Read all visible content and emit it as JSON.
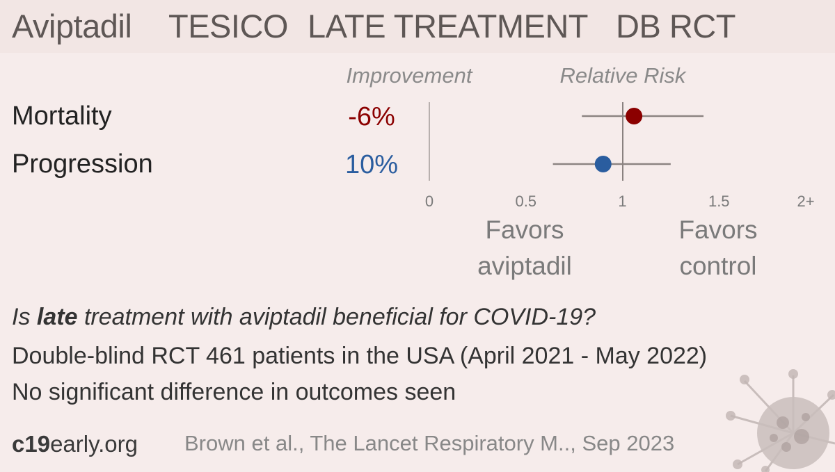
{
  "header": {
    "drug": "Aviptadil",
    "trial": "TESICO",
    "stage": "LATE TREATMENT",
    "design": "DB RCT"
  },
  "chart_data": {
    "type": "forest",
    "column_headers": {
      "improvement": "Improvement",
      "relative_risk": "Relative Risk"
    },
    "outcomes": [
      {
        "name": "Mortality",
        "improvement": "-6%",
        "rr": 1.06,
        "ci_low": 0.79,
        "ci_high": 1.42,
        "color": "#8b0000"
      },
      {
        "name": "Progression",
        "improvement": "10%",
        "rr": 0.9,
        "ci_low": 0.64,
        "ci_high": 1.25,
        "color": "#2a5d9f"
      }
    ],
    "x_ticks": [
      "0",
      "0.5",
      "1",
      "1.5",
      "2+"
    ],
    "xlim": [
      0,
      2
    ],
    "reference_line": 1,
    "favors_left": [
      "Favors",
      "aviptadil"
    ],
    "favors_right": [
      "Favors",
      "control"
    ]
  },
  "summary": {
    "question_prefix": "Is ",
    "question_bold": "late",
    "question_suffix": " treatment with aviptadil beneficial for COVID-19?",
    "design_line": "Double-blind RCT 461 patients in the USA (April 2021 - May 2022)",
    "result_line": "No significant difference in outcomes seen"
  },
  "footer": {
    "brand_bold": "c19",
    "brand_rest": "early.org",
    "citation": "Brown et al., The Lancet Respiratory M.., Sep 2023"
  }
}
